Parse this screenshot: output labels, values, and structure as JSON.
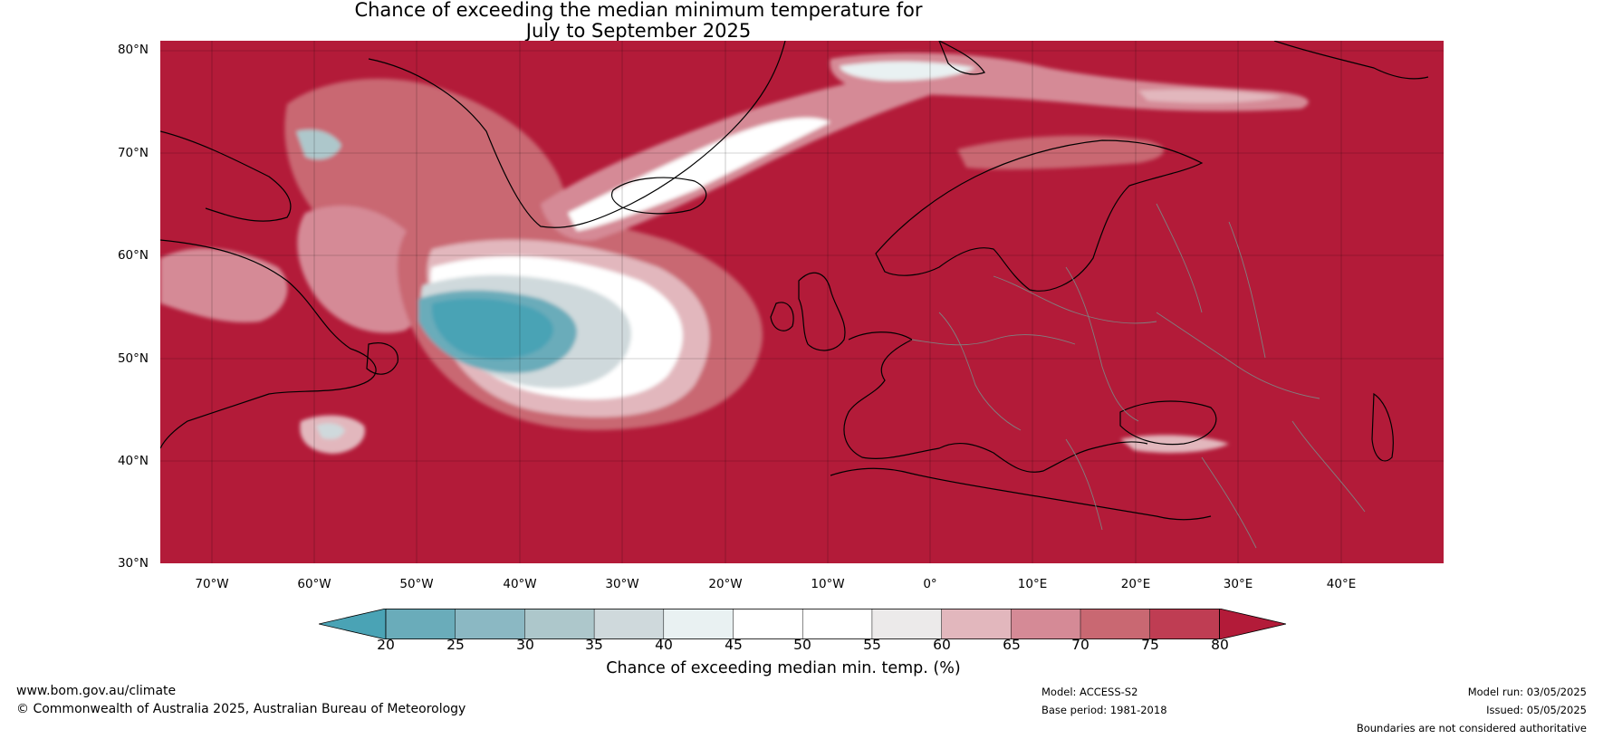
{
  "title": {
    "line1": "Chance of exceeding the median minimum temperature for",
    "line2": "July to September 2025"
  },
  "map": {
    "projection": "plate carree",
    "lon_range": [
      -75,
      50
    ],
    "lat_range": [
      30,
      81
    ],
    "lat_ticks": [
      "30°N",
      "40°N",
      "50°N",
      "60°N",
      "70°N",
      "80°N"
    ],
    "lon_ticks": [
      "70°W",
      "60°W",
      "50°W",
      "40°W",
      "30°W",
      "20°W",
      "10°W",
      "0°",
      "10°E",
      "20°E",
      "30°E",
      "40°E"
    ],
    "background_color": "#b31b39",
    "coastline_color": "#000000",
    "border_color": "#808080"
  },
  "colorbar": {
    "ticks": [
      "20",
      "25",
      "30",
      "35",
      "40",
      "45",
      "50",
      "55",
      "60",
      "65",
      "70",
      "75",
      "80"
    ],
    "colors": [
      "#4aa3b5",
      "#6aacba",
      "#8bb8c3",
      "#adc7cb",
      "#cfd9dc",
      "#e9f1f2",
      "#ffffff",
      "#ffffff",
      "#eceaea",
      "#e2b7bd",
      "#d58a96",
      "#c96872",
      "#bf3d53",
      "#b31b39"
    ],
    "label": "Chance of exceeding median min. temp. (%)"
  },
  "footer": {
    "website": "www.bom.gov.au/climate",
    "copyright": "© Commonwealth of Australia 2025, Australian Bureau of Meteorology",
    "model": "Model: ACCESS-S2",
    "base_period": "Base period: 1981-2018",
    "model_run": "Model run: 03/05/2025",
    "issued": "Issued: 05/05/2025",
    "disclaimer": "Boundaries are not considered authoritative"
  }
}
